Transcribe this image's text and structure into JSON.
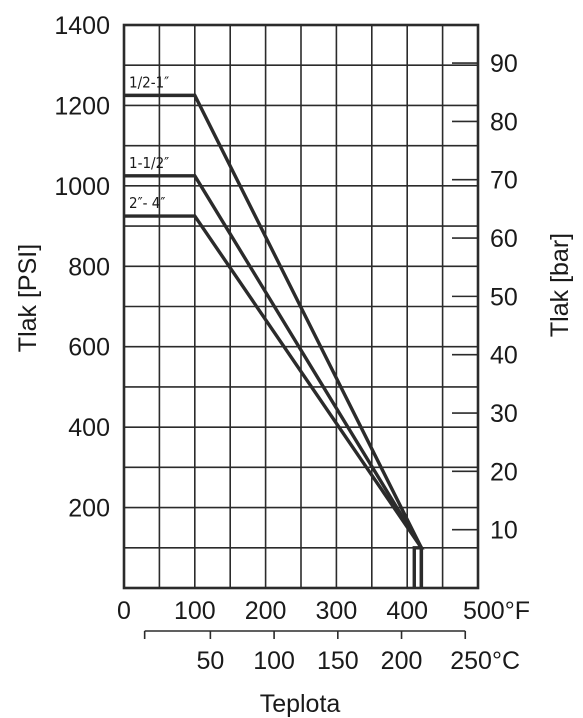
{
  "chart_data": {
    "type": "line",
    "title": "",
    "xlabel": "Teplota",
    "ylabel": "Tlak [PSI]",
    "y2label": "Tlak [bar]",
    "x_unit_f": "°F",
    "x_unit_c": "°C",
    "xlim": [
      0,
      500
    ],
    "ylim": [
      0,
      1400
    ],
    "grid": true,
    "line_color": "#2b2b2b",
    "x_ticks_f": [
      "0",
      "100",
      "200",
      "300",
      "400",
      "500"
    ],
    "x_ticks_c": [
      "50",
      "100",
      "150",
      "200",
      "250"
    ],
    "y_ticks": [
      "200",
      "400",
      "600",
      "800",
      "1000",
      "1200",
      "1400"
    ],
    "y2_ticks": [
      "10",
      "20",
      "30",
      "40",
      "50",
      "60",
      "70",
      "80",
      "90"
    ],
    "series": [
      {
        "name": "1/2-1\"",
        "label": "1/2-1″",
        "x": [
          0,
          100,
          420,
          420
        ],
        "y": [
          1225,
          1225,
          100,
          0
        ]
      },
      {
        "name": "1-1/2\"",
        "label": "1-1/2″",
        "x": [
          0,
          100,
          420,
          420
        ],
        "y": [
          1025,
          1025,
          100,
          0
        ]
      },
      {
        "name": "2\"-4\"",
        "label": "2″- 4″",
        "x": [
          0,
          100,
          420,
          410,
          410
        ],
        "y": [
          925,
          925,
          100,
          100,
          0
        ]
      }
    ]
  }
}
